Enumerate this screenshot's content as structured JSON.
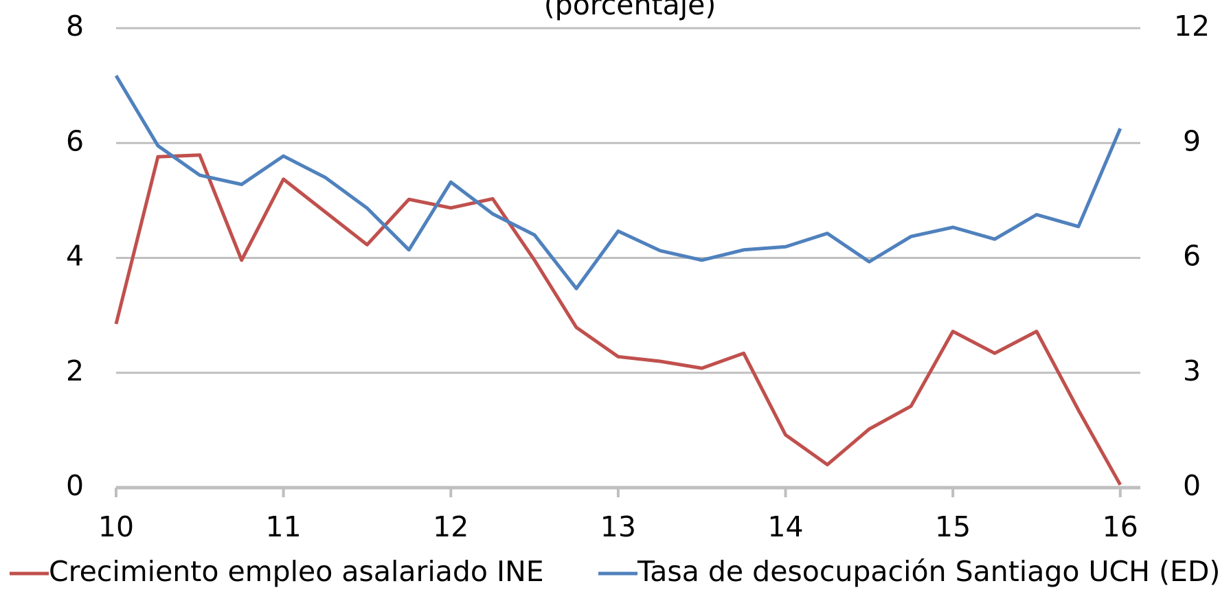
{
  "chart_data": {
    "type": "line",
    "subtitle": "(porcentaje)",
    "x": [
      10,
      10.25,
      10.5,
      10.75,
      11,
      11.25,
      11.5,
      11.75,
      12,
      12.25,
      12.5,
      12.75,
      13,
      13.25,
      13.5,
      13.75,
      14,
      14.25,
      14.5,
      14.75,
      15,
      15.25,
      15.5,
      15.75,
      16
    ],
    "series": [
      {
        "name": "Crecimiento empleo asalariado INE",
        "color": "#c0504d",
        "values": [
          2.85,
          5.76,
          5.79,
          3.96,
          5.37,
          4.8,
          4.23,
          5.02,
          4.87,
          5.03,
          3.96,
          2.79,
          2.28,
          2.2,
          2.08,
          2.34,
          0.92,
          0.4,
          1.02,
          1.42,
          2.72,
          2.34,
          2.72,
          1.35,
          0.05
        ]
      },
      {
        "name": "Tasa de desocupación Santiago UCH (ED)",
        "color": "#4f81bd",
        "axis": "y2",
        "values": [
          10.76,
          8.93,
          8.16,
          7.92,
          8.66,
          8.1,
          7.3,
          6.21,
          7.98,
          7.15,
          6.6,
          5.2,
          6.7,
          6.19,
          5.94,
          6.21,
          6.29,
          6.64,
          5.9,
          6.56,
          6.8,
          6.49,
          7.13,
          6.82,
          9.38
        ]
      }
    ],
    "xlim": [
      10,
      16.12
    ],
    "xticks": [
      10,
      11,
      12,
      13,
      14,
      15,
      16
    ],
    "ylim": [
      0,
      8
    ],
    "yticks": [
      0,
      2,
      4,
      6,
      8
    ],
    "y2lim": [
      0,
      12
    ],
    "y2ticks": [
      0,
      3,
      6,
      9,
      12
    ],
    "grid": true,
    "legend": "bottom"
  }
}
